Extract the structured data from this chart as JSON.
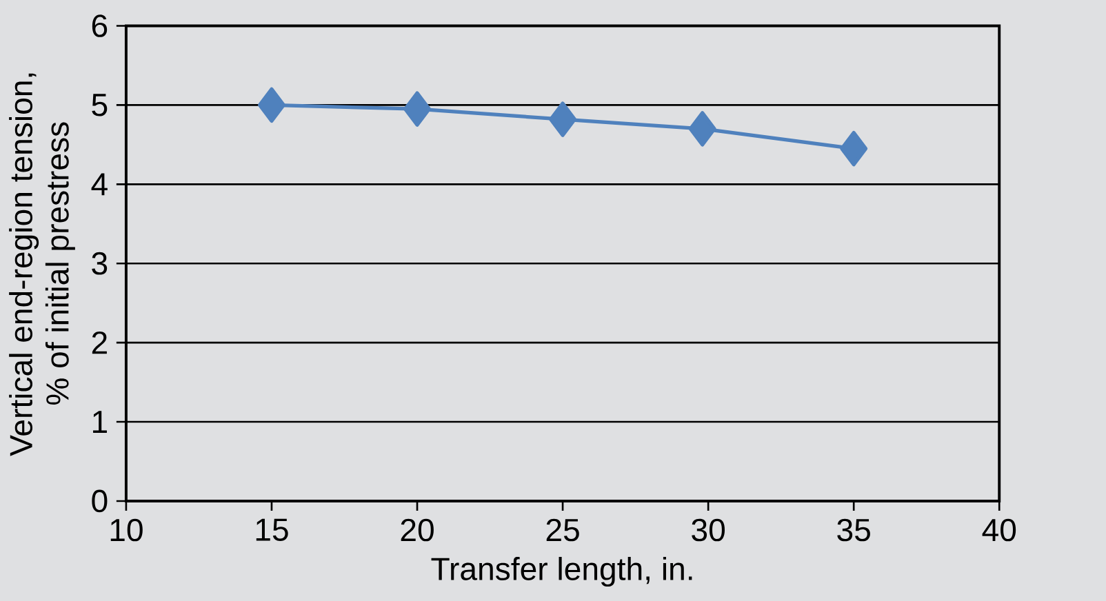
{
  "chart_data": {
    "type": "line",
    "xlabel": "Transfer length, in.",
    "ylabel": "Vertical end-region tension,\n% of initial prestress",
    "x": [
      15,
      20,
      25,
      29.8,
      35
    ],
    "series": [
      {
        "color": "#4f81bd",
        "values": [
          5.0,
          4.95,
          4.82,
          4.7,
          4.45
        ]
      }
    ],
    "xlim": [
      10,
      40
    ],
    "xticks": [
      10,
      15,
      20,
      25,
      30,
      35,
      40
    ],
    "ylim": [
      0,
      6
    ],
    "yticks": [
      0,
      1,
      2,
      3,
      4,
      5,
      6
    ],
    "grid": "y",
    "marker": "diamond",
    "line_style": "solid"
  }
}
